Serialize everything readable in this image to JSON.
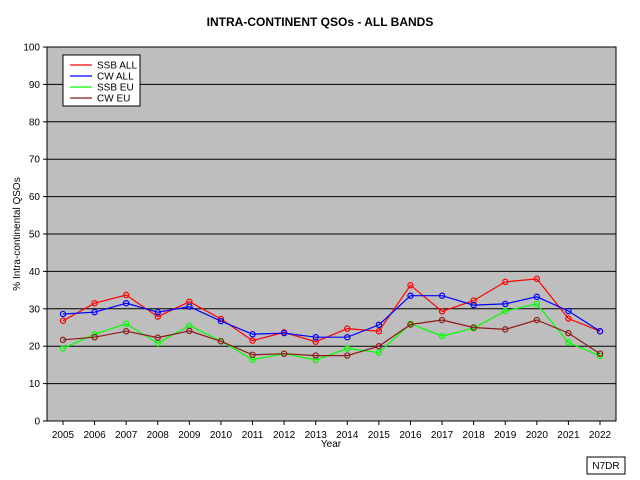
{
  "chart_data": {
    "type": "line",
    "title": "INTRA-CONTINENT QSOs - ALL BANDS",
    "xlabel": "Year",
    "ylabel": "% Intra-continental QSOs",
    "ylim": [
      0,
      100
    ],
    "yticks": [
      0,
      10,
      20,
      30,
      40,
      50,
      60,
      70,
      80,
      90,
      100
    ],
    "grid": true,
    "legend_position": "top-left",
    "categories": [
      "2005",
      "2006",
      "2007",
      "2008",
      "2009",
      "2010",
      "2011",
      "2012",
      "2013",
      "2014",
      "2015",
      "2016",
      "2017",
      "2018",
      "2019",
      "2020",
      "2021",
      "2022"
    ],
    "series": [
      {
        "name": "SSB ALL",
        "color": "#ff0000",
        "values": [
          26.8,
          31.5,
          33.7,
          27.9,
          31.9,
          27.3,
          21.5,
          23.7,
          21.2,
          24.7,
          24.0,
          36.3,
          29.3,
          32.2,
          37.2,
          38.0,
          27.4,
          24.0
        ]
      },
      {
        "name": "CW ALL",
        "color": "#0000ff",
        "values": [
          28.6,
          29.1,
          31.5,
          29.1,
          30.6,
          26.7,
          23.2,
          23.5,
          22.4,
          22.4,
          25.7,
          33.5,
          33.5,
          31.0,
          31.3,
          33.2,
          29.4,
          24.0
        ]
      },
      {
        "name": "SSB EU",
        "color": "#00ff00",
        "values": [
          19.4,
          23.2,
          26.0,
          20.8,
          25.5,
          21.4,
          16.4,
          18.0,
          16.3,
          19.4,
          18.3,
          26.0,
          22.7,
          24.8,
          29.4,
          31.3,
          21.0,
          17.4
        ]
      },
      {
        "name": "CW EU",
        "color": "#8b1a1a",
        "values": [
          21.7,
          22.4,
          24.0,
          22.3,
          24.1,
          21.3,
          17.7,
          18.0,
          17.5,
          17.5,
          20.0,
          25.8,
          27.0,
          25.0,
          24.5,
          27.0,
          23.5,
          18.0
        ]
      }
    ],
    "colors": {
      "plot_background": "#bebebe",
      "gridline": "#000000"
    }
  },
  "credit": "N7DR"
}
